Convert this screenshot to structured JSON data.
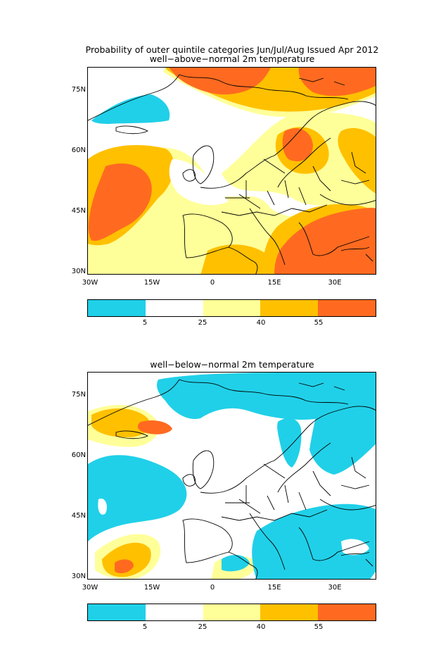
{
  "colors": {
    "cyan": "#20d0e8",
    "white": "#ffffff",
    "yellow": "#ffff99",
    "orange": "#ffc000",
    "red": "#ff6a20",
    "coast": "#000000"
  },
  "figure": {
    "title_main": "Probability of outer quintile categories Jun/Jul/Aug Issued Apr 2012"
  },
  "panels": [
    {
      "subtitle": "well−above−normal 2m temperature",
      "y_ticks": [
        "75N",
        "60N",
        "45N",
        "30N"
      ],
      "x_ticks": [
        "30W",
        "15W",
        "0",
        "15E",
        "30E"
      ]
    },
    {
      "subtitle": "well−below−normal 2m temperature",
      "y_ticks": [
        "75N",
        "60N",
        "45N",
        "30N"
      ],
      "x_ticks": [
        "30W",
        "15W",
        "0",
        "15E",
        "30E"
      ]
    }
  ],
  "colorbar": {
    "labels": [
      "5",
      "25",
      "40",
      "55"
    ],
    "colors": [
      "#20d0e8",
      "#ffffff",
      "#ffff99",
      "#ffc000",
      "#ff6a20"
    ]
  }
}
